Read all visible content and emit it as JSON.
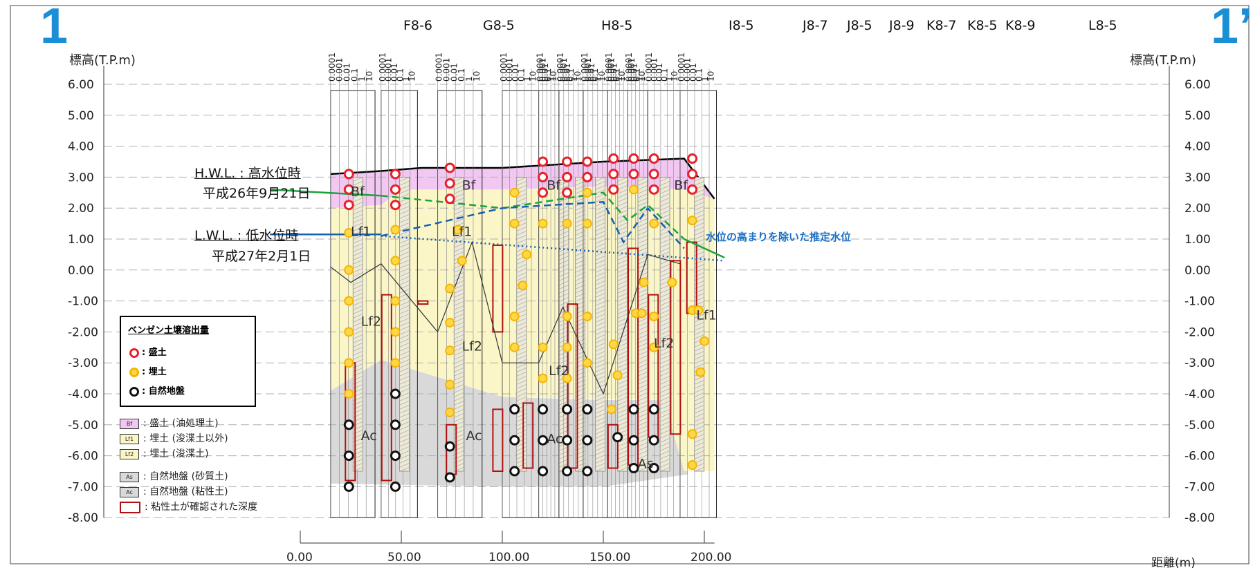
{
  "corner_left": "1",
  "corner_right": "1’",
  "y_axis_label_left": "標高(T.P.m)",
  "y_axis_label_right": "標高(T.P.m)",
  "x_axis_unit": "距離(m)",
  "y_ticks": [
    "6.00",
    "5.00",
    "4.00",
    "3.00",
    "2.00",
    "1.00",
    "0.00",
    "-1.00",
    "-2.00",
    "-3.00",
    "-4.00",
    "-5.00",
    "-6.00",
    "-7.00",
    "-8.00"
  ],
  "x_ticks": [
    "0.00",
    "50.00",
    "100.00",
    "150.00",
    "200.00"
  ],
  "boreholes": [
    {
      "name": "F8-6"
    },
    {
      "name": "G8-5"
    },
    {
      "name": "H8-5"
    },
    {
      "name": "I8-5"
    },
    {
      "name": "J8-7"
    },
    {
      "name": "J8-5"
    },
    {
      "name": "J8-9"
    },
    {
      "name": "K8-7"
    },
    {
      "name": "K8-5"
    },
    {
      "name": "K8-9"
    },
    {
      "name": "L8-5"
    }
  ],
  "conc_scale_labels": [
    "0.0001",
    "0.001",
    "0.01",
    "0.1",
    "1",
    "10"
  ],
  "hwl": {
    "title": "H.W.L. : 高水位時",
    "date": "平成26年9月21日",
    "color": "#1aa33a"
  },
  "lwl": {
    "title": "L.W.L. : 低水位時",
    "date": "平成27年2月1日",
    "color": "#1560b0"
  },
  "estimate_label": "水位の高まりを除いた推定水位",
  "layer_labels": {
    "bf": "Bf",
    "lf1": "Lf1",
    "lf2": "Lf2",
    "ac": "Ac",
    "as": "As"
  },
  "legend": {
    "title": "ベンゼン土壌溶出量",
    "items": [
      {
        "label": ": 盛土",
        "color": "#e8202a"
      },
      {
        "label": ": 埋土",
        "color": "#f6b400"
      },
      {
        "label": ": 自然地盤",
        "color": "#111111"
      }
    ]
  },
  "soil_legend": [
    {
      "code": "Bf",
      "label": ": 盛土 (油処理土)",
      "color": "#f2c8f2"
    },
    {
      "code": "Lf1",
      "label": ": 埋土 (浚渫土以外)",
      "color": "#fbf6c8"
    },
    {
      "code": "Lf2",
      "label": ": 埋土 (浚渫土)",
      "color": "#fbf6c8"
    },
    {
      "code": "As",
      "label": ": 自然地盤 (砂質土)",
      "color": "#d9d9d9"
    },
    {
      "code": "Ac",
      "label": ": 自然地盤 (粘性土)",
      "color": "#d9d9d9"
    },
    {
      "code": "",
      "label": ": 粘性土が確認された深度",
      "color": "#ffffff"
    }
  ],
  "colors": {
    "bf": "#f2c8f2",
    "lf": "#fbf6c8",
    "natural": "#d9d9d9",
    "clay_box": "#b01010",
    "grid": "#b0b0b0",
    "axis_blue": "#1a8fd6"
  }
}
